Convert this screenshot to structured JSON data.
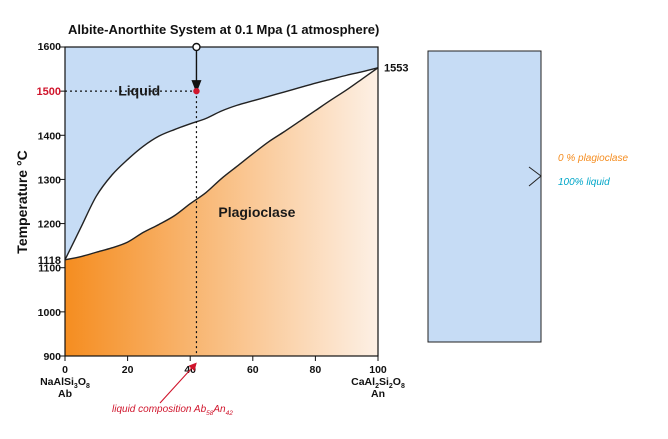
{
  "chart_data": {
    "type": "area",
    "title": "Albite-Anorthite System at 0.1 Mpa (1 atmosphere)",
    "xlabel": "",
    "ylabel": "Temperature °C",
    "xlim": [
      0,
      100
    ],
    "ylim": [
      900,
      1600
    ],
    "x_ticks": [
      0,
      20,
      40,
      60,
      80,
      100
    ],
    "y_ticks": [
      900,
      1000,
      1100,
      1200,
      1300,
      1400,
      1500,
      1600
    ],
    "grid": false,
    "endmember_left": {
      "formula": "NaAlSi",
      "sub1": "3",
      "formula2": "O",
      "sub2": "8",
      "abbr": "Ab",
      "melting_point": "1118",
      "melting_value": 1118
    },
    "endmember_right": {
      "formula": "CaAl",
      "sub1": "2",
      "formula2": "Si",
      "sub2": "2",
      "formula3": "O",
      "sub3": "8",
      "abbr": "An",
      "melting_point": "1553",
      "melting_value": 1553
    },
    "liquidus": [
      [
        0,
        1118
      ],
      [
        5,
        1190
      ],
      [
        10,
        1262
      ],
      [
        15,
        1310
      ],
      [
        20,
        1345
      ],
      [
        25,
        1375
      ],
      [
        30,
        1398
      ],
      [
        35,
        1413
      ],
      [
        40,
        1426
      ],
      [
        45,
        1438
      ],
      [
        50,
        1455
      ],
      [
        55,
        1468
      ],
      [
        60,
        1478
      ],
      [
        65,
        1488
      ],
      [
        70,
        1498
      ],
      [
        75,
        1508
      ],
      [
        80,
        1518
      ],
      [
        85,
        1527
      ],
      [
        90,
        1536
      ],
      [
        95,
        1544
      ],
      [
        100,
        1553
      ]
    ],
    "solidus": [
      [
        0,
        1118
      ],
      [
        5,
        1125
      ],
      [
        10,
        1135
      ],
      [
        15,
        1145
      ],
      [
        20,
        1158
      ],
      [
        25,
        1180
      ],
      [
        30,
        1198
      ],
      [
        35,
        1218
      ],
      [
        40,
        1245
      ],
      [
        45,
        1270
      ],
      [
        50,
        1302
      ],
      [
        55,
        1330
      ],
      [
        60,
        1358
      ],
      [
        65,
        1385
      ],
      [
        70,
        1408
      ],
      [
        75,
        1432
      ],
      [
        80,
        1456
      ],
      [
        85,
        1480
      ],
      [
        90,
        1503
      ],
      [
        95,
        1528
      ],
      [
        100,
        1553
      ]
    ],
    "regions": [
      {
        "name": "Liquid",
        "label": "Liquid",
        "color": "#c6dcf5"
      },
      {
        "name": "Plagioclase",
        "label": "Plagioclase",
        "gradient_from": "#f58d20",
        "gradient_to": "#fdf0e5"
      }
    ],
    "marker": {
      "x": 42,
      "y": 1500,
      "y_label": "1500",
      "y_label_color": "#d0152c",
      "color": "#d0152c"
    },
    "annotation": {
      "text": "liquid composition Ab",
      "sub1": "58",
      "mid": "An",
      "sub2": "42",
      "color": "#d0152c"
    },
    "legend_box": {
      "fill": "#c6dcf5",
      "entries": [
        {
          "text": "0 % plagioclase",
          "color": "#f58d20"
        },
        {
          "text": "100% liquid",
          "color": "#00a6c8"
        }
      ]
    }
  }
}
